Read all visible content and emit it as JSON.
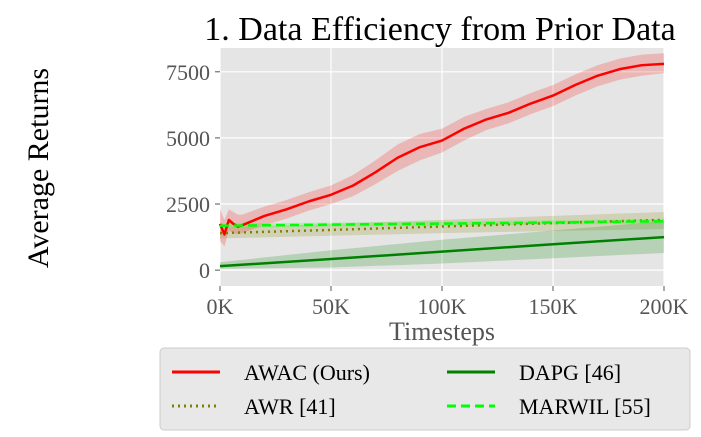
{
  "chart_data": {
    "type": "line",
    "title": "1. Data Efficiency from Prior Data",
    "xlabel": "Timesteps",
    "ylabel": "Average Returns",
    "xlim": [
      0,
      200000
    ],
    "ylim": [
      -600,
      8400
    ],
    "xticks": [
      0,
      50000,
      100000,
      150000,
      200000
    ],
    "xtick_labels": [
      "0K",
      "50K",
      "100K",
      "150K",
      "200K"
    ],
    "yticks": [
      0,
      2500,
      5000,
      7500
    ],
    "ytick_labels": [
      "0",
      "2500",
      "5000",
      "7500"
    ],
    "grid": true,
    "legend_placement": "bottom",
    "series": [
      {
        "name": "AWAC (Ours)",
        "color": "#ff0000",
        "style": "solid",
        "x": [
          0,
          2000,
          4000,
          6000,
          8000,
          10000,
          20000,
          30000,
          40000,
          50000,
          60000,
          70000,
          80000,
          90000,
          100000,
          110000,
          120000,
          130000,
          140000,
          150000,
          160000,
          170000,
          180000,
          190000,
          200000
        ],
        "y": [
          1750,
          1350,
          1900,
          1750,
          1650,
          1700,
          2050,
          2300,
          2600,
          2850,
          3200,
          3700,
          4250,
          4650,
          4900,
          5350,
          5700,
          5950,
          6300,
          6600,
          7000,
          7350,
          7600,
          7750,
          7800
        ],
        "lower": [
          1100,
          900,
          1500,
          1400,
          1350,
          1400,
          1700,
          1950,
          2250,
          2500,
          2800,
          3250,
          3750,
          4150,
          4450,
          4900,
          5300,
          5550,
          5900,
          6200,
          6600,
          6950,
          7200,
          7350,
          7450
        ],
        "upper": [
          2300,
          1900,
          2300,
          2200,
          2100,
          2100,
          2400,
          2650,
          2950,
          3200,
          3600,
          4150,
          4750,
          5150,
          5350,
          5800,
          6100,
          6350,
          6700,
          7000,
          7400,
          7750,
          8000,
          8150,
          8200
        ]
      },
      {
        "name": "AWR [41]",
        "color": "#808000",
        "style": "dotted",
        "x": [
          0,
          50000,
          100000,
          150000,
          200000
        ],
        "y": [
          1400,
          1520,
          1650,
          1780,
          1900
        ],
        "lower": [
          1200,
          1300,
          1400,
          1480,
          1550
        ],
        "upper": [
          1600,
          1750,
          1900,
          2050,
          2200
        ]
      },
      {
        "name": "DAPG [46]",
        "color": "#008000",
        "style": "solid",
        "x": [
          0,
          50000,
          100000,
          150000,
          200000
        ],
        "y": [
          150,
          420,
          700,
          980,
          1250
        ],
        "lower": [
          50,
          100,
          250,
          450,
          650
        ],
        "upper": [
          300,
          750,
          1150,
          1500,
          1850
        ]
      },
      {
        "name": "MARWIL [55]",
        "color": "#00ff00",
        "style": "dashed",
        "x": [
          0,
          50000,
          100000,
          150000,
          200000
        ],
        "y": [
          1680,
          1720,
          1760,
          1800,
          1850
        ],
        "lower": [
          1600,
          1640,
          1680,
          1720,
          1760
        ],
        "upper": [
          1760,
          1800,
          1840,
          1880,
          1940
        ]
      }
    ],
    "legend": [
      {
        "label": "AWAC (Ours)",
        "color": "#ff0000",
        "style": "solid"
      },
      {
        "label": "DAPG [46]",
        "color": "#008000",
        "style": "solid"
      },
      {
        "label": "AWR [41]",
        "color": "#808000",
        "style": "dotted"
      },
      {
        "label": "MARWIL [55]",
        "color": "#00ff00",
        "style": "dashed"
      }
    ]
  }
}
